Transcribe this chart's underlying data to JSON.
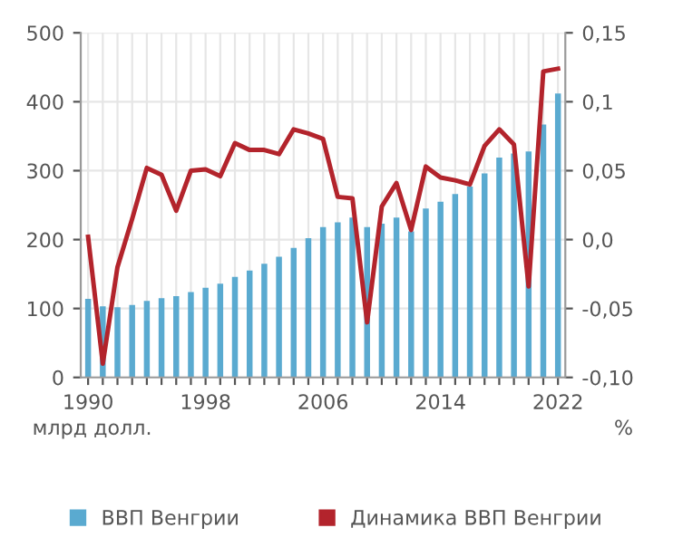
{
  "chart_data": {
    "type": "bar",
    "x": [
      1990,
      1991,
      1992,
      1993,
      1994,
      1995,
      1996,
      1997,
      1998,
      1999,
      2000,
      2001,
      2002,
      2003,
      2004,
      2005,
      2006,
      2007,
      2008,
      2009,
      2010,
      2011,
      2012,
      2013,
      2014,
      2015,
      2016,
      2017,
      2018,
      2019,
      2020,
      2021,
      2022
    ],
    "series": [
      {
        "name": "ВВП Венгрии",
        "color": "#5aaad0",
        "values": [
          114,
          103,
          102,
          105,
          111,
          115,
          118,
          124,
          130,
          136,
          146,
          155,
          165,
          175,
          188,
          202,
          218,
          225,
          232,
          218,
          223,
          232,
          212,
          245,
          255,
          266,
          277,
          296,
          319,
          325,
          328,
          367,
          412
        ]
      },
      {
        "name": "Динамика ВВП Венгрии",
        "type": "line",
        "axis": "y2",
        "color": "#b3242c",
        "values": [
          0.002,
          -0.09,
          -0.02,
          0.015,
          0.052,
          0.047,
          0.021,
          0.05,
          0.051,
          0.046,
          0.07,
          0.065,
          0.065,
          0.062,
          0.08,
          0.077,
          0.073,
          0.031,
          0.03,
          -0.06,
          0.024,
          0.041,
          0.007,
          0.053,
          0.045,
          0.043,
          0.04,
          0.068,
          0.08,
          0.069,
          -0.034,
          0.122,
          0.124
        ]
      }
    ],
    "ylabel": "млрд долл.",
    "y2label": "%",
    "xlim": [
      1989.5,
      2022.5
    ],
    "xticks": [
      1990,
      {
        "value": 1991,
        "label": null
      },
      {
        "value": 1992,
        "label": null
      },
      {
        "value": 1993,
        "label": null
      },
      {
        "value": 1994,
        "label": null
      },
      {
        "value": 1995,
        "label": null
      },
      {
        "value": 1996,
        "label": null
      },
      {
        "value": 1997,
        "label": null
      },
      1998,
      {
        "value": 1999,
        "label": null
      },
      {
        "value": 2000,
        "label": null
      },
      {
        "value": 2001,
        "label": null
      },
      {
        "value": 2002,
        "label": null
      },
      {
        "value": 2003,
        "label": null
      },
      {
        "value": 2004,
        "label": null
      },
      {
        "value": 2005,
        "label": null
      },
      2006,
      {
        "value": 2007,
        "label": null
      },
      {
        "value": 2008,
        "label": null
      },
      {
        "value": 2009,
        "label": null
      },
      {
        "value": 2010,
        "label": null
      },
      {
        "value": 2011,
        "label": null
      },
      {
        "value": 2012,
        "label": null
      },
      {
        "value": 2013,
        "label": null
      },
      2014,
      {
        "value": 2015,
        "label": null
      },
      {
        "value": 2016,
        "label": null
      },
      {
        "value": 2017,
        "label": null
      },
      {
        "value": 2018,
        "label": null
      },
      {
        "value": 2019,
        "label": null
      },
      {
        "value": 2020,
        "label": null
      },
      {
        "value": 2021,
        "label": null
      },
      2022
    ],
    "ylim": [
      0,
      500
    ],
    "yticks": [
      0,
      100,
      200,
      300,
      400,
      500
    ],
    "y2lim": [
      -0.1,
      0.15
    ],
    "y2ticks": [
      {
        "value": 0.15,
        "label": "0,15"
      },
      {
        "value": 0.1,
        "label": "0,1"
      },
      {
        "value": 0.05,
        "label": "0,05"
      },
      {
        "value": 0.0,
        "label": "0,0"
      },
      {
        "value": -0.05,
        "label": "-0,05"
      },
      {
        "value": -0.1,
        "label": "-0,10"
      }
    ],
    "grid": true,
    "legend": "bottom",
    "marker": "none",
    "line_style": "solid"
  }
}
